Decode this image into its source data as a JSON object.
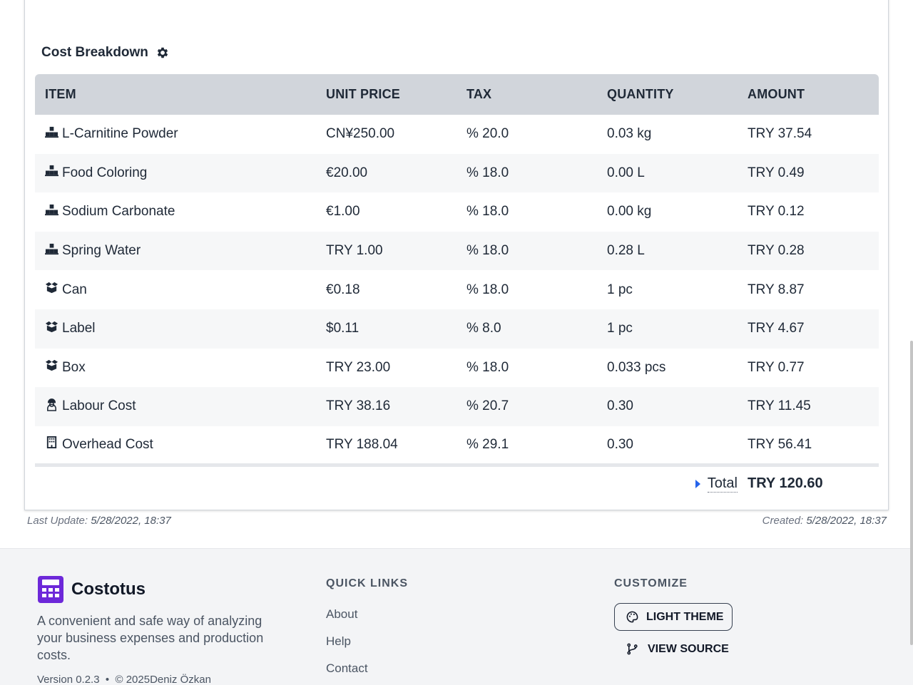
{
  "section": {
    "title": "Cost Breakdown",
    "settings_icon": "gear-icon"
  },
  "table": {
    "headers": {
      "item": "ITEM",
      "unit_price": "UNIT PRICE",
      "tax": "TAX",
      "quantity": "QUANTITY",
      "amount": "AMOUNT"
    },
    "rows": [
      {
        "icon": "boxes-icon",
        "item": "L-Carnitine Powder",
        "unit_price": "CN¥250.00",
        "tax": "% 20.0",
        "quantity": "0.03 kg",
        "amount": "TRY 37.54"
      },
      {
        "icon": "boxes-icon",
        "item": "Food Coloring",
        "unit_price": "€20.00",
        "tax": "% 18.0",
        "quantity": "0.00 L",
        "amount": "TRY 0.49"
      },
      {
        "icon": "boxes-icon",
        "item": "Sodium Carbonate",
        "unit_price": "€1.00",
        "tax": "% 18.0",
        "quantity": "0.00 kg",
        "amount": "TRY 0.12"
      },
      {
        "icon": "boxes-icon",
        "item": "Spring Water",
        "unit_price": "TRY 1.00",
        "tax": "% 18.0",
        "quantity": "0.28 L",
        "amount": "TRY 0.28"
      },
      {
        "icon": "open-box-icon",
        "item": "Can",
        "unit_price": "€0.18",
        "tax": "% 18.0",
        "quantity": "1 pc",
        "amount": "TRY 8.87"
      },
      {
        "icon": "open-box-icon",
        "item": "Label",
        "unit_price": "$0.11",
        "tax": "% 8.0",
        "quantity": "1 pc",
        "amount": "TRY 4.67"
      },
      {
        "icon": "open-box-icon",
        "item": "Box",
        "unit_price": "TRY 23.00",
        "tax": "% 18.0",
        "quantity": "0.033 pcs",
        "amount": "TRY 0.77"
      },
      {
        "icon": "worker-icon",
        "item": "Labour Cost",
        "unit_price": "TRY 38.16",
        "tax": "% 20.7",
        "quantity": "0.30",
        "amount": "TRY 11.45"
      },
      {
        "icon": "building-icon",
        "item": "Overhead Cost",
        "unit_price": "TRY 188.04",
        "tax": "% 29.1",
        "quantity": "0.30",
        "amount": "TRY 56.41"
      }
    ],
    "total": {
      "label": "Total",
      "amount": "TRY 120.60"
    }
  },
  "meta": {
    "last_update_label": "Last Update:",
    "last_update_value": "5/28/2022, 18:37",
    "created_label": "Created:",
    "created_value": "5/28/2022, 18:37"
  },
  "footer": {
    "brand": "Costotus",
    "description": "A convenient and safe way of analyzing your business expenses and production costs.",
    "version": "Version 0.2.3",
    "copyright": "© 2025Deniz Özkan",
    "quick_links_heading": "QUICK LINKS",
    "links": [
      "About",
      "Help",
      "Contact"
    ],
    "customize_heading": "CUSTOMIZE",
    "theme_button": "LIGHT THEME",
    "source_button": "VIEW SOURCE"
  },
  "colors": {
    "accent": "#2563eb",
    "brand": "#6d28d9",
    "header_bg": "#d1d5db"
  }
}
